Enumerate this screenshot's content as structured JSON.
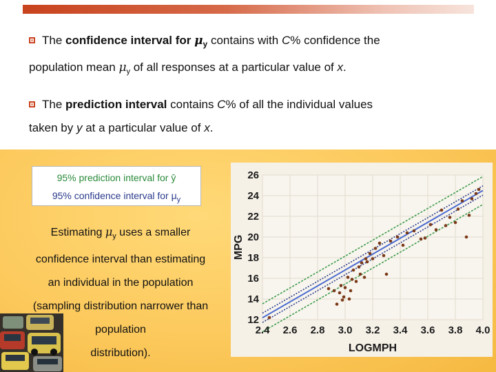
{
  "bullets": [
    {
      "pre": "The ",
      "bold": "confidence interval for ",
      "sym": "μ",
      "sub": "y",
      "post": " contains with ",
      "c": "C",
      "post2": "% confidence the",
      "line2_pre": "population mean ",
      "line2_sym": "μ",
      "line2_sub": "y",
      "line2_post": " of all responses at a particular value of ",
      "line2_x": "x",
      "line2_end": "."
    },
    {
      "pre": "The ",
      "bold": "prediction interval",
      "post": " contains ",
      "c": "C",
      "post2": "% of all the individual values",
      "line2_pre": "taken by ",
      "line2_y": "y",
      "line2_post": " at a particular value of ",
      "line2_x": "x",
      "line2_end": "."
    }
  ],
  "legend": {
    "prediction": "95% prediction interval for ŷ",
    "confidence": "95% confidence interval for μ",
    "confidence_sub": "y"
  },
  "explanation": {
    "line1_pre": "Estimating ",
    "line1_sym": "μ",
    "line1_sub": "y",
    "line1_post": " uses a smaller",
    "line2": "confidence interval than estimating",
    "line3": "an individual in the population",
    "line4": "(sampling distribution narrower than",
    "line5": "population",
    "line6": "distribution)."
  },
  "colors": {
    "accent": "#c8431e",
    "prediction_band": "#3a9a4a",
    "confidence_band": "#2a3a8c",
    "fit_line": "#4a6ad0",
    "points": "#7a3a1a",
    "axis_text": "#1a1a1a"
  },
  "chart_data": {
    "type": "scatter",
    "xlabel": "LOGMPH",
    "ylabel": "MPG",
    "xlim": [
      2.4,
      4.0
    ],
    "ylim": [
      12,
      26
    ],
    "xticks": [
      "2.4",
      "2.6",
      "2.8",
      "3.0",
      "3.2",
      "3.4",
      "3.6",
      "3.8",
      "4.0"
    ],
    "yticks": [
      "12",
      "14",
      "16",
      "18",
      "20",
      "22",
      "24",
      "26"
    ],
    "grid": true,
    "fit_line": {
      "slope": 7.7,
      "intercept": -6.3
    },
    "confidence_halfwidth": 0.45,
    "prediction_halfwidth": 1.35,
    "x": [
      2.45,
      2.88,
      2.92,
      2.94,
      2.96,
      2.97,
      2.98,
      2.99,
      3.0,
      3.02,
      3.03,
      3.04,
      3.05,
      3.06,
      3.08,
      3.1,
      3.11,
      3.12,
      3.14,
      3.15,
      3.16,
      3.18,
      3.2,
      3.22,
      3.25,
      3.28,
      3.3,
      3.33,
      3.38,
      3.42,
      3.45,
      3.5,
      3.55,
      3.58,
      3.62,
      3.66,
      3.7,
      3.73,
      3.76,
      3.8,
      3.82,
      3.85,
      3.88,
      3.9,
      3.92,
      3.95,
      3.97
    ],
    "y": [
      12.2,
      15.0,
      14.8,
      13.5,
      14.6,
      15.3,
      13.9,
      14.2,
      15.1,
      16.1,
      14.0,
      14.8,
      15.9,
      16.8,
      15.7,
      17.1,
      16.4,
      17.5,
      16.1,
      17.9,
      17.6,
      18.4,
      17.9,
      18.9,
      19.4,
      18.2,
      16.4,
      19.6,
      20.0,
      19.2,
      20.4,
      20.6,
      19.8,
      19.9,
      21.2,
      20.7,
      22.6,
      21.1,
      21.9,
      21.4,
      22.7,
      23.5,
      20.0,
      22.1,
      23.7,
      24.2,
      24.6
    ]
  }
}
